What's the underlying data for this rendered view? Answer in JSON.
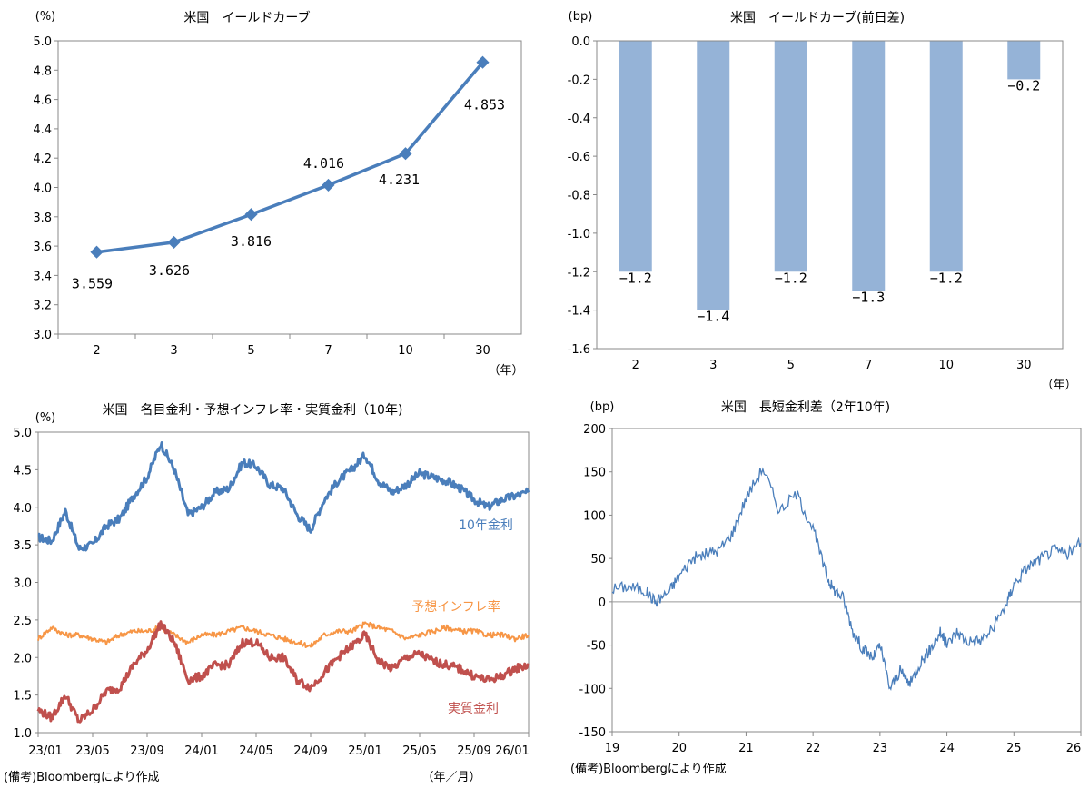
{
  "chart_data": [
    {
      "type": "line",
      "title": "米国　イールドカーブ",
      "ylabel": "(%)",
      "xlabel": "（年）",
      "categories": [
        "2",
        "3",
        "5",
        "7",
        "10",
        "30"
      ],
      "values": [
        3.559,
        3.626,
        3.816,
        4.016,
        4.231,
        4.853
      ],
      "data_labels": [
        "3.559",
        "3.626",
        "3.816",
        "4.016",
        "4.231",
        "4.853"
      ],
      "ylim": [
        3.0,
        5.0
      ],
      "yticks": [
        "3.0",
        "3.2",
        "3.4",
        "3.6",
        "3.8",
        "4.0",
        "4.2",
        "4.4",
        "4.6",
        "4.8",
        "5.0"
      ],
      "color": "#4A7EBB",
      "grid": false
    },
    {
      "type": "bar",
      "title": "米国　イールドカーブ(前日差)",
      "ylabel": "(bp)",
      "xlabel": "（年）",
      "categories": [
        "2",
        "3",
        "5",
        "7",
        "10",
        "30"
      ],
      "values": [
        -1.2,
        -1.4,
        -1.2,
        -1.3,
        -1.2,
        -0.2
      ],
      "data_labels": [
        "−1.2",
        "−1.4",
        "−1.2",
        "−1.3",
        "−1.2",
        "−0.2"
      ],
      "ylim": [
        -1.6,
        0.0
      ],
      "yticks": [
        "0.0",
        "-0.2",
        "-0.4",
        "-0.6",
        "-0.8",
        "-1.0",
        "-1.2",
        "-1.4",
        "-1.6"
      ],
      "color": "#95B3D7",
      "grid": false
    },
    {
      "type": "line",
      "title": "米国　名目金利・予想インフレ率・実質金利（10年)",
      "ylabel": "(%)",
      "xlabel": "（年／月）",
      "x_ticks": [
        "23/01",
        "23/05",
        "23/09",
        "24/01",
        "24/05",
        "24/09",
        "25/01",
        "25/05",
        "25/09",
        "26/01"
      ],
      "ylim": [
        1.0,
        5.0
      ],
      "yticks": [
        "1.0",
        "1.5",
        "2.0",
        "2.5",
        "3.0",
        "3.5",
        "4.0",
        "4.5",
        "5.0"
      ],
      "grid": false,
      "series": [
        {
          "name": "10年金利",
          "color": "#4A7EBB",
          "x": [
            "23/01",
            "23/02",
            "23/03",
            "23/04",
            "23/05",
            "23/06",
            "23/07",
            "23/08",
            "23/09",
            "23/10",
            "23/11",
            "23/12",
            "24/01",
            "24/02",
            "24/03",
            "24/04",
            "24/05",
            "24/06",
            "24/07",
            "24/08",
            "24/09",
            "24/10",
            "24/11",
            "24/12",
            "25/01",
            "25/02",
            "25/03",
            "25/04",
            "25/05",
            "25/06",
            "25/07",
            "25/08",
            "25/09",
            "25/10",
            "25/11",
            "25/12",
            "26/01"
          ],
          "values": [
            3.6,
            3.55,
            3.95,
            3.45,
            3.5,
            3.75,
            3.85,
            4.15,
            4.4,
            4.85,
            4.5,
            3.9,
            4.0,
            4.2,
            4.25,
            4.6,
            4.55,
            4.3,
            4.25,
            3.9,
            3.7,
            4.1,
            4.35,
            4.5,
            4.7,
            4.35,
            4.2,
            4.3,
            4.45,
            4.4,
            4.35,
            4.25,
            4.1,
            4.0,
            4.1,
            4.15,
            4.2
          ]
        },
        {
          "name": "予想インフレ率",
          "color": "#F79646",
          "x": [
            "23/01",
            "23/02",
            "23/03",
            "23/04",
            "23/05",
            "23/06",
            "23/07",
            "23/08",
            "23/09",
            "23/10",
            "23/11",
            "23/12",
            "24/01",
            "24/02",
            "24/03",
            "24/04",
            "24/05",
            "24/06",
            "24/07",
            "24/08",
            "24/09",
            "24/10",
            "24/11",
            "24/12",
            "25/01",
            "25/02",
            "25/03",
            "25/04",
            "25/05",
            "25/06",
            "25/07",
            "25/08",
            "25/09",
            "25/10",
            "25/11",
            "25/12",
            "26/01"
          ],
          "values": [
            2.25,
            2.4,
            2.3,
            2.3,
            2.25,
            2.2,
            2.3,
            2.35,
            2.35,
            2.4,
            2.3,
            2.2,
            2.3,
            2.3,
            2.35,
            2.4,
            2.35,
            2.3,
            2.25,
            2.2,
            2.15,
            2.3,
            2.35,
            2.35,
            2.45,
            2.4,
            2.35,
            2.25,
            2.3,
            2.35,
            2.4,
            2.35,
            2.35,
            2.3,
            2.3,
            2.25,
            2.3
          ]
        },
        {
          "name": "実質金利",
          "color": "#C0504D",
          "x": [
            "23/01",
            "23/02",
            "23/03",
            "23/04",
            "23/05",
            "23/06",
            "23/07",
            "23/08",
            "23/09",
            "23/10",
            "23/11",
            "23/12",
            "24/01",
            "24/02",
            "24/03",
            "24/04",
            "24/05",
            "24/06",
            "24/07",
            "24/08",
            "24/09",
            "24/10",
            "24/11",
            "24/12",
            "25/01",
            "25/02",
            "25/03",
            "25/04",
            "25/05",
            "25/06",
            "25/07",
            "25/08",
            "25/09",
            "25/10",
            "25/11",
            "25/12",
            "26/01"
          ],
          "values": [
            1.3,
            1.2,
            1.5,
            1.15,
            1.3,
            1.55,
            1.6,
            1.9,
            2.1,
            2.45,
            2.2,
            1.7,
            1.75,
            1.9,
            1.9,
            2.2,
            2.2,
            2.0,
            2.0,
            1.7,
            1.6,
            1.8,
            2.0,
            2.15,
            2.3,
            1.95,
            1.85,
            2.0,
            2.05,
            1.95,
            1.9,
            1.85,
            1.75,
            1.7,
            1.75,
            1.85,
            1.9
          ]
        }
      ]
    },
    {
      "type": "line",
      "title": "米国　長短金利差（2年10年)",
      "ylabel": "(bp)",
      "x_ticks": [
        "19",
        "20",
        "21",
        "22",
        "23",
        "24",
        "25",
        "26"
      ],
      "ylim": [
        -150,
        200
      ],
      "yticks": [
        "200",
        "150",
        "100",
        "50",
        "0",
        "-50",
        "-100",
        "-150"
      ],
      "grid": false,
      "zero_line": true,
      "series": [
        {
          "color": "#4A7EBB",
          "x": [
            19.0,
            19.25,
            19.5,
            19.65,
            19.85,
            20.0,
            20.2,
            20.4,
            20.6,
            20.8,
            21.0,
            21.25,
            21.5,
            21.75,
            22.0,
            22.2,
            22.3,
            22.45,
            22.6,
            22.75,
            22.9,
            23.0,
            23.15,
            23.3,
            23.45,
            23.6,
            23.75,
            23.9,
            24.0,
            24.15,
            24.3,
            24.5,
            24.7,
            24.9,
            25.0,
            25.2,
            25.4,
            25.6,
            25.8,
            26.0
          ],
          "values": [
            15,
            18,
            12,
            0,
            12,
            30,
            50,
            55,
            60,
            80,
            120,
            155,
            105,
            125,
            85,
            30,
            15,
            5,
            -35,
            -55,
            -65,
            -50,
            -100,
            -80,
            -95,
            -70,
            -55,
            -35,
            -50,
            -35,
            -45,
            -45,
            -30,
            0,
            20,
            40,
            50,
            60,
            55,
            68
          ]
        }
      ]
    }
  ],
  "footnotes": {
    "left": "(備考)Bloombergにより作成",
    "right": "(備考)Bloombergにより作成"
  }
}
